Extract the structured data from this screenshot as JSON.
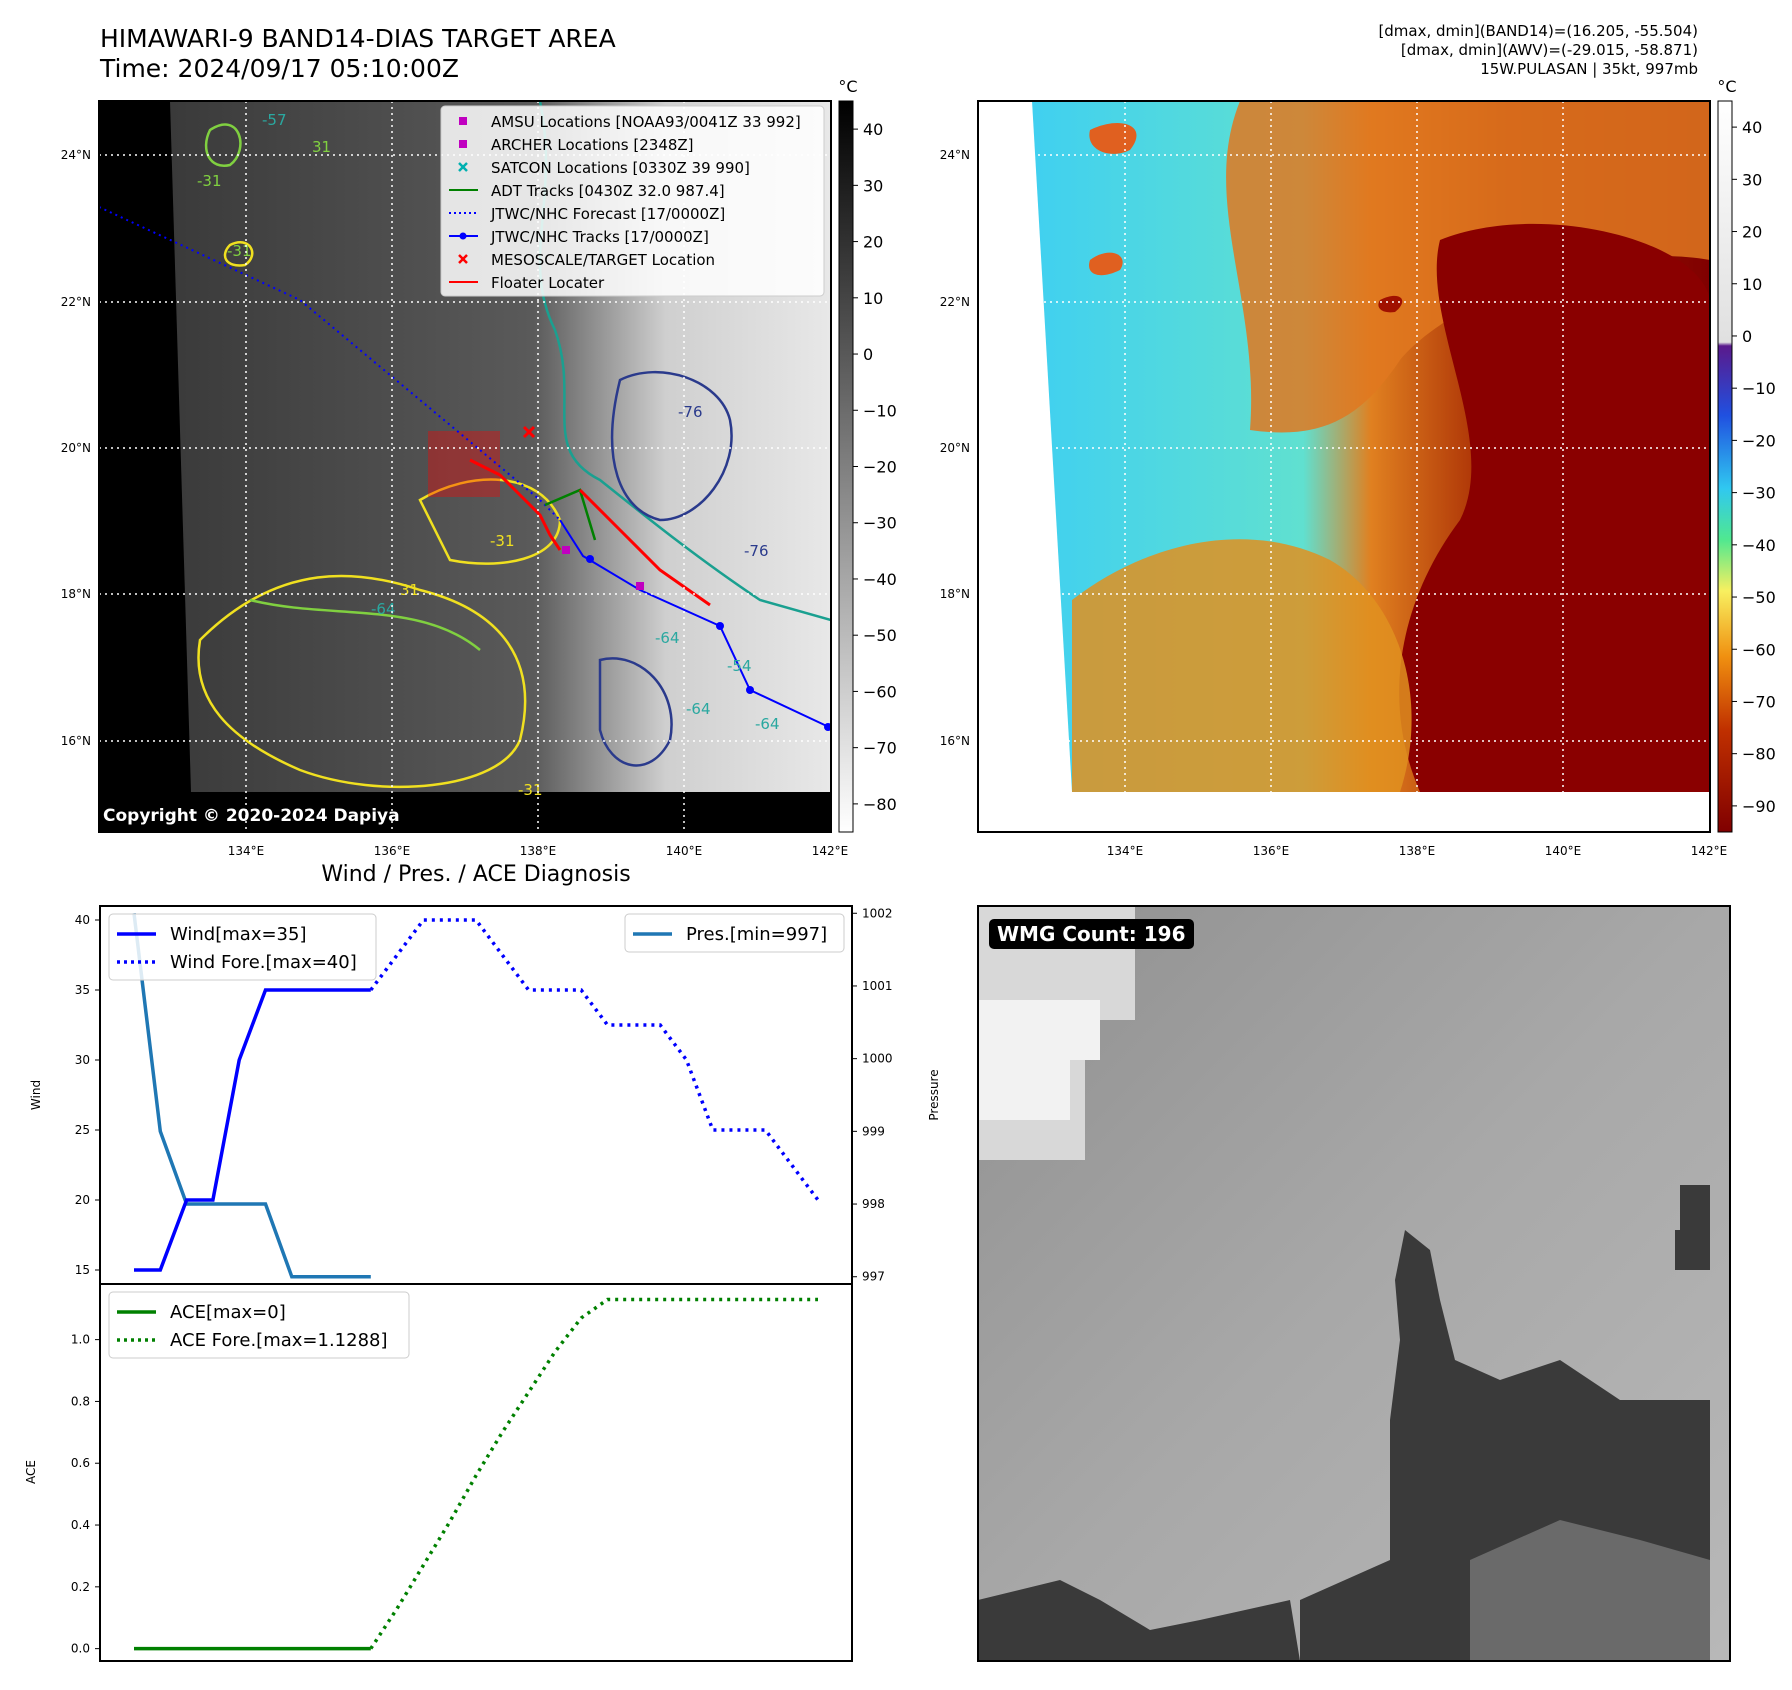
{
  "header": {
    "title_line1": "HIMAWARI-9 BAND14-DIAS TARGET AREA",
    "title_line2": "Time: 2024/09/17 05:10:00Z",
    "info_line1": "[dmax, dmin](BAND14)=(16.205, -55.504)",
    "info_line2": "[dmax, dmin](AWV)=(-29.015, -58.871)",
    "info_line3": "15W.PULASAN | 35kt, 997mb"
  },
  "map": {
    "lat_ticks": [
      "24°N",
      "22°N",
      "20°N",
      "18°N",
      "16°N"
    ],
    "lon_ticks": [
      "134°E",
      "136°E",
      "138°E",
      "140°E",
      "142°E"
    ],
    "copyright": "Copyright © 2020-2024 Dapiya",
    "unit": "°C",
    "gray_cbar_ticks": [
      "40",
      "30",
      "20",
      "10",
      "0",
      "−10",
      "−20",
      "−30",
      "−40",
      "−50",
      "−60",
      "−70",
      "−80"
    ],
    "color_cbar_ticks": [
      "40",
      "30",
      "20",
      "10",
      "0",
      "−10",
      "−20",
      "−30",
      "−40",
      "−50",
      "−60",
      "−70",
      "−80",
      "−90"
    ],
    "contour_labels": [
      "-57",
      "31",
      "-31",
      "-31",
      "-76",
      "-76",
      "-64",
      "-64",
      "-64",
      "-64",
      "-31",
      "-31",
      "31",
      "-54"
    ],
    "legend": [
      {
        "label": "AMSU Locations [NOAA93/0041Z 33 992]",
        "color": "#c000c0"
      },
      {
        "label": "ARCHER Locations [2348Z]",
        "color": "#c000c0"
      },
      {
        "label": "SATCON Locations [0330Z 39 990]",
        "color": "#00b0b0"
      },
      {
        "label": "ADT Tracks [0430Z 32.0 987.4]",
        "color": "#008000"
      },
      {
        "label": "JTWC/NHC Forecast [17/0000Z]",
        "color": "#0000ff"
      },
      {
        "label": "JTWC/NHC Tracks [17/0000Z]",
        "color": "#0000ff"
      },
      {
        "label": "MESOSCALE/TARGET Location",
        "color": "#ff0000"
      },
      {
        "label": "Floater Locater",
        "color": "#ff0000"
      }
    ]
  },
  "diag": {
    "title": "Wind / Pres. / ACE Diagnosis",
    "wind_ylabel": "Wind",
    "pres_ylabel": "Pressure",
    "ace_ylabel": "ACE",
    "wind_ticks": [
      "40",
      "35",
      "30",
      "25",
      "20",
      "15"
    ],
    "pres_ticks": [
      "1002",
      "1001",
      "1000",
      "999",
      "998",
      "997"
    ],
    "ace_ticks": [
      "1.0",
      "0.8",
      "0.6",
      "0.4",
      "0.2",
      "0.0"
    ],
    "legend_wind": "Wind[max=35]",
    "legend_wind_fore": "Wind Fore.[max=40]",
    "legend_pres": "Pres.[min=997]",
    "legend_ace": "ACE[max=0]",
    "legend_ace_fore": "ACE Fore.[max=1.1288]"
  },
  "wmg": {
    "label": "WMG Count: 196"
  },
  "chart_data": [
    {
      "type": "line",
      "title": "Wind / Pres. / ACE Diagnosis",
      "ylabel": "Wind",
      "ylim": [
        14,
        41
      ],
      "series": [
        {
          "name": "Wind[max=35]",
          "color": "#0000ff",
          "x": [
            0,
            1,
            2,
            3,
            4,
            5,
            6,
            7,
            8,
            9
          ],
          "values": [
            15,
            15,
            20,
            20,
            30,
            35,
            35,
            35,
            35,
            35
          ]
        },
        {
          "name": "Wind Fore.[max=40]",
          "color": "#0000ff",
          "style": "dotted",
          "x": [
            9,
            10,
            11,
            12,
            13,
            14,
            15,
            16,
            17,
            18,
            19,
            20,
            21,
            22,
            23,
            24,
            25,
            26
          ],
          "values": [
            35,
            37.5,
            40,
            40,
            40,
            37.5,
            35,
            35,
            35,
            32.5,
            32.5,
            32.5,
            30,
            25,
            25,
            25,
            22.5,
            20
          ]
        }
      ]
    },
    {
      "type": "line",
      "ylabel": "Pressure",
      "ylim": [
        996.9,
        1002.1
      ],
      "series": [
        {
          "name": "Pres.[min=997]",
          "color": "#1f77b4",
          "x": [
            0,
            1,
            2,
            3,
            4,
            5,
            6,
            7,
            8,
            9
          ],
          "values": [
            1002,
            999,
            998,
            998,
            998,
            998,
            997,
            997,
            997,
            997
          ]
        }
      ]
    },
    {
      "type": "line",
      "ylabel": "ACE",
      "ylim": [
        -0.04,
        1.18
      ],
      "series": [
        {
          "name": "ACE[max=0]",
          "color": "#008000",
          "x": [
            0,
            9
          ],
          "values": [
            0,
            0
          ]
        },
        {
          "name": "ACE Fore.[max=1.1288]",
          "color": "#008000",
          "style": "dotted",
          "x": [
            9,
            10,
            11,
            12,
            13,
            14,
            15,
            16,
            17,
            18,
            19,
            20,
            21,
            22,
            23,
            24,
            25,
            26
          ],
          "values": [
            0,
            0.13,
            0.27,
            0.41,
            0.56,
            0.7,
            0.83,
            0.96,
            1.07,
            1.13,
            1.13,
            1.13,
            1.13,
            1.13,
            1.13,
            1.13,
            1.13,
            1.13
          ]
        }
      ]
    }
  ]
}
